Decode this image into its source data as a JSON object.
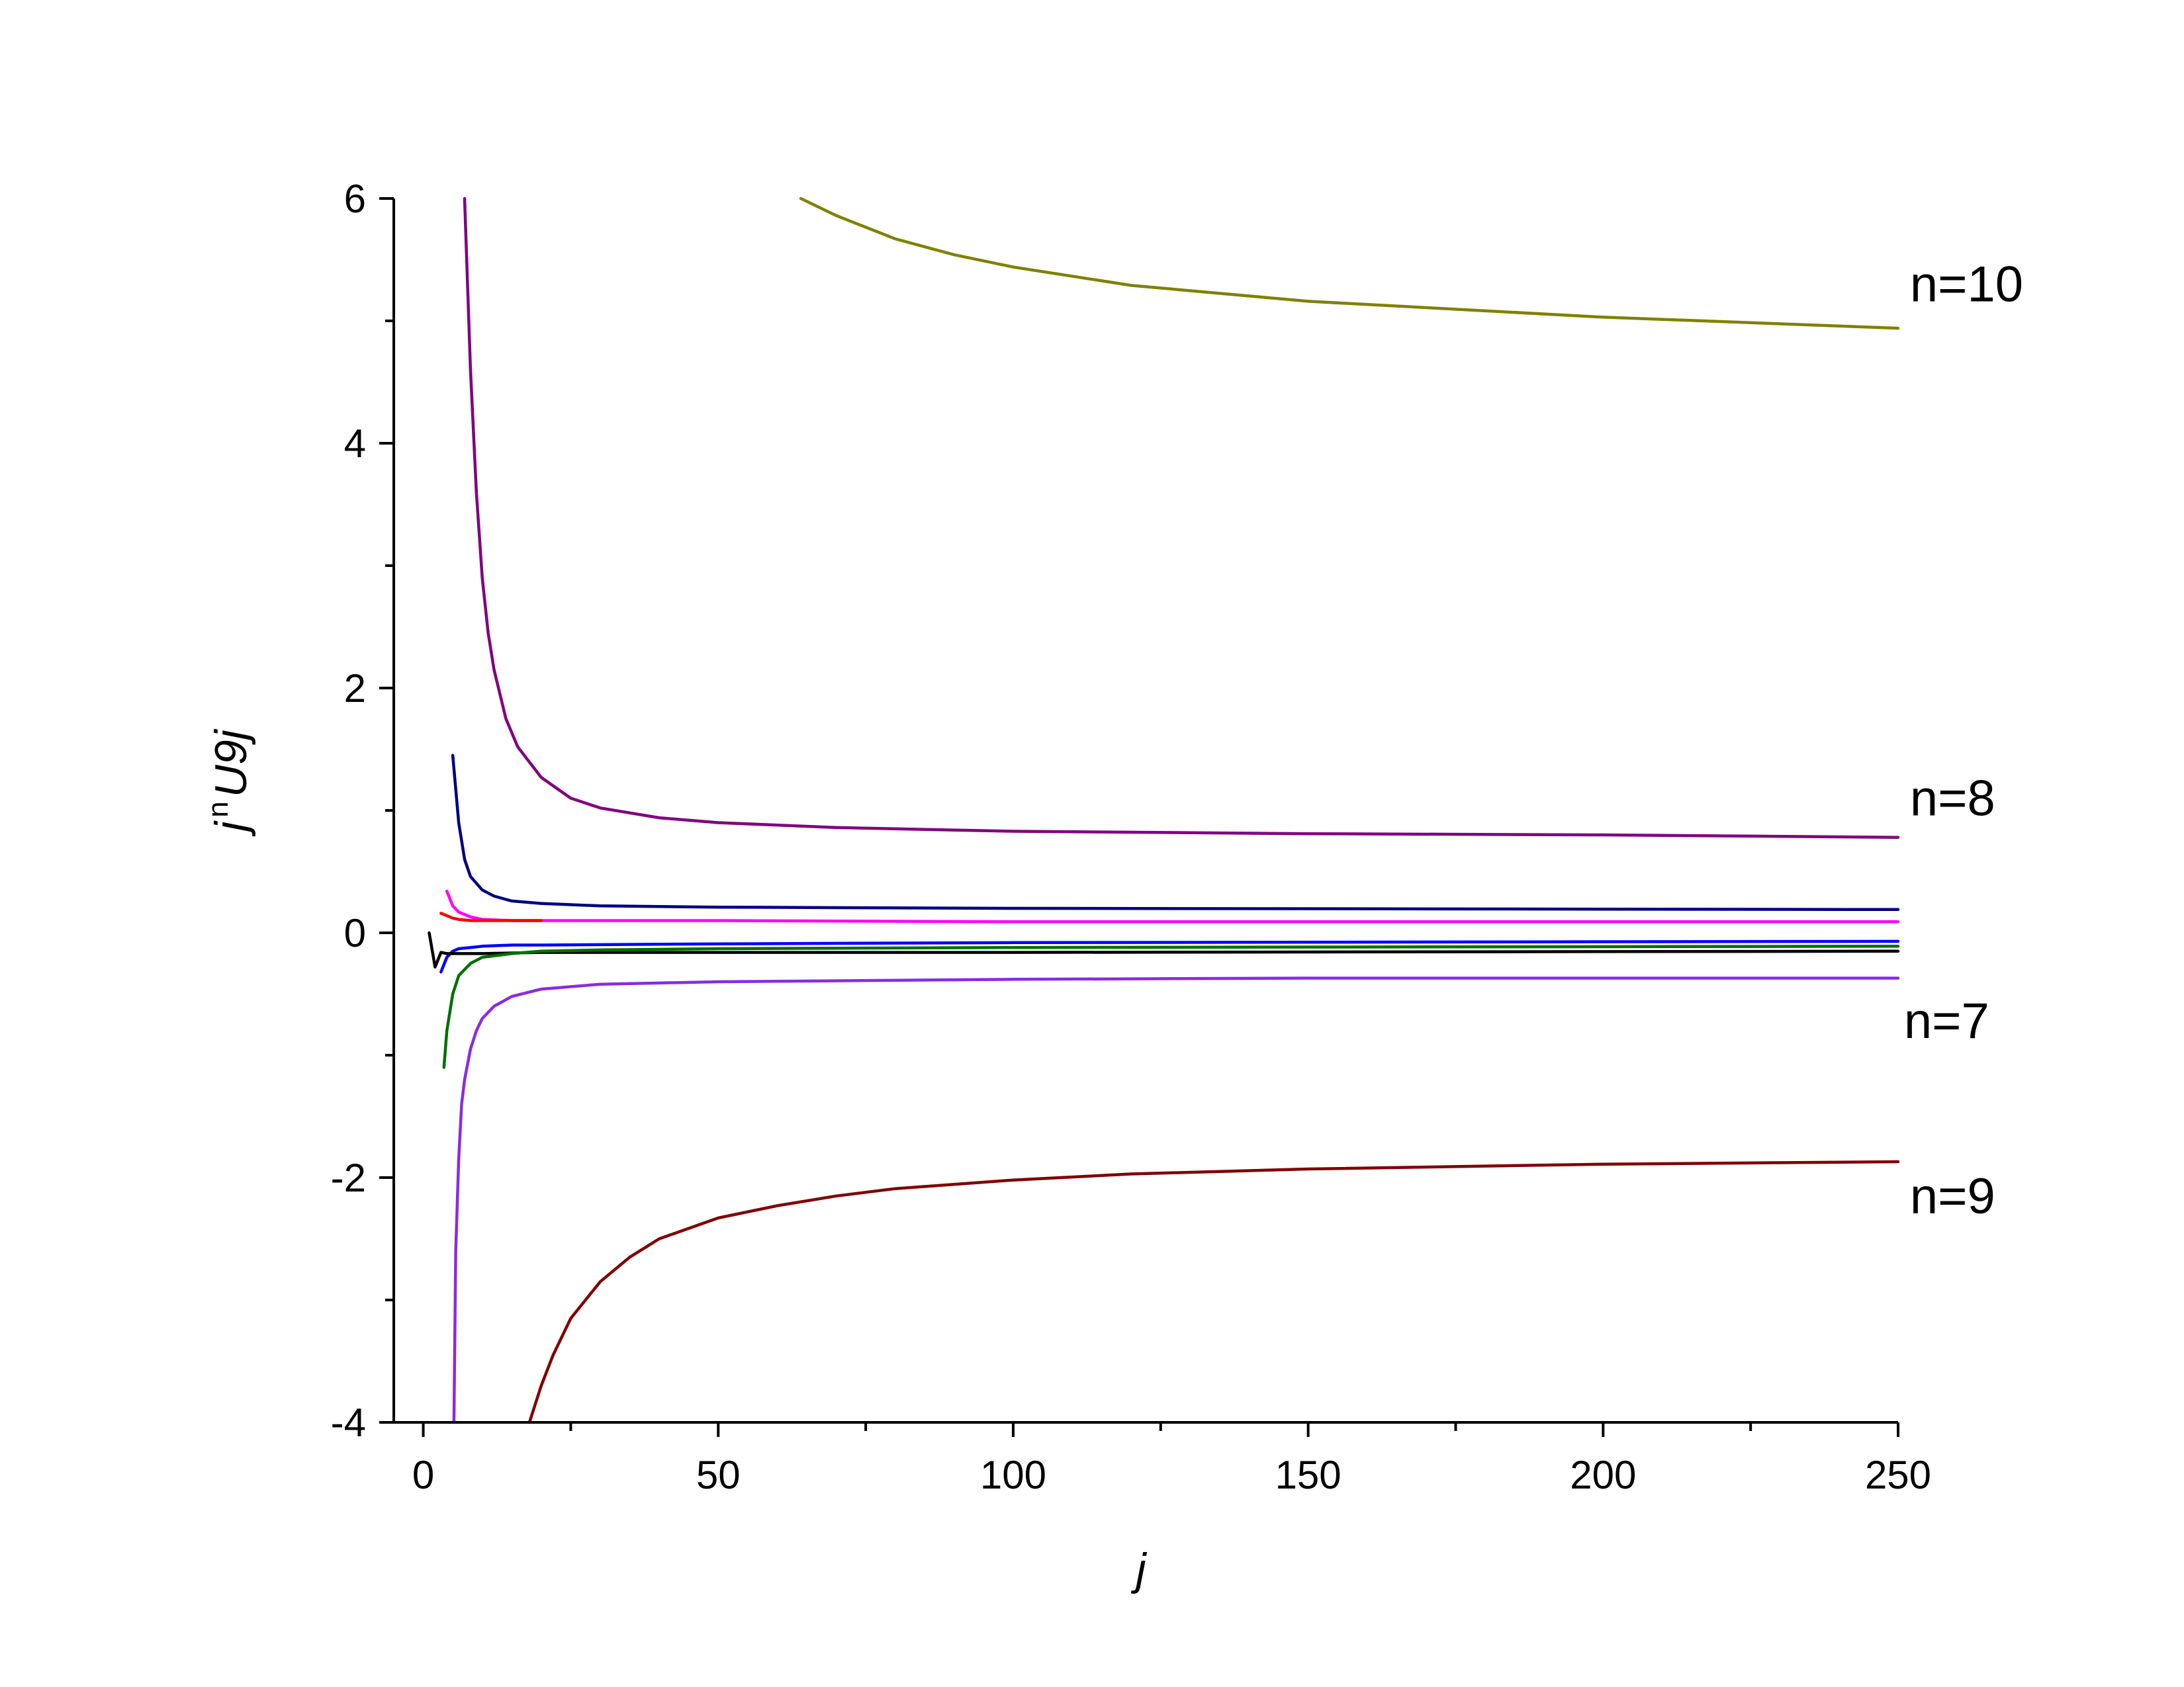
{
  "chart_data": {
    "type": "line",
    "xlabel": "j",
    "ylabel": {
      "base": "j",
      "superscript": "n",
      "rest": "U9j"
    },
    "xlim": [
      -5,
      250
    ],
    "ylim": [
      -4,
      6
    ],
    "x_ticks": [
      0,
      50,
      100,
      150,
      200,
      250
    ],
    "x_tick_labels": [
      "0",
      "50",
      "100",
      "150",
      "200",
      "250"
    ],
    "x_minor_ticks": [
      25,
      75,
      125,
      175,
      225
    ],
    "y_ticks": [
      -4,
      -2,
      0,
      2,
      4,
      6
    ],
    "y_tick_labels": [
      "-4",
      "-2",
      "0",
      "2",
      "4",
      "6"
    ],
    "y_minor_ticks": [
      -3,
      -1,
      1,
      3,
      5
    ],
    "grid": false,
    "legend": "none",
    "series": [
      {
        "name": "n=10",
        "color": "#808000",
        "x": [
          64,
          70,
          80,
          90,
          100,
          120,
          150,
          200,
          250
        ],
        "y": [
          6.0,
          5.86,
          5.67,
          5.54,
          5.44,
          5.29,
          5.16,
          5.03,
          4.94
        ]
      },
      {
        "name": "n=8",
        "color": "#800080",
        "x": [
          7,
          8,
          9,
          10,
          11,
          12,
          14,
          16,
          20,
          25,
          30,
          40,
          50,
          70,
          100,
          150,
          200,
          250
        ],
        "y": [
          6.0,
          4.6,
          3.6,
          2.9,
          2.45,
          2.15,
          1.75,
          1.52,
          1.27,
          1.1,
          1.02,
          0.94,
          0.9,
          0.86,
          0.83,
          0.81,
          0.8,
          0.78
        ]
      },
      {
        "color": "#000080",
        "x": [
          5,
          6,
          7,
          8,
          10,
          12,
          15,
          20,
          30,
          50,
          100,
          250
        ],
        "y": [
          1.45,
          0.9,
          0.6,
          0.46,
          0.35,
          0.3,
          0.26,
          0.24,
          0.22,
          0.21,
          0.2,
          0.19
        ]
      },
      {
        "color": "#ff00ff",
        "x": [
          4,
          5,
          6,
          8,
          10,
          15,
          20,
          50,
          100,
          250
        ],
        "y": [
          0.34,
          0.22,
          0.17,
          0.13,
          0.11,
          0.1,
          0.1,
          0.1,
          0.09,
          0.09
        ]
      },
      {
        "color": "#ff0000",
        "x": [
          3,
          4,
          5,
          6,
          8,
          10,
          20
        ],
        "y": [
          0.16,
          0.14,
          0.12,
          0.11,
          0.1,
          0.1,
          0.1
        ]
      },
      {
        "color": "#0000ff",
        "x": [
          3,
          4,
          5,
          6,
          8,
          10,
          15,
          20,
          50,
          100,
          250
        ],
        "y": [
          -0.32,
          -0.2,
          -0.15,
          -0.13,
          -0.12,
          -0.11,
          -0.1,
          -0.1,
          -0.09,
          -0.08,
          -0.07
        ]
      },
      {
        "color": "#000000",
        "x": [
          1,
          2,
          3,
          4,
          5,
          10,
          20,
          50,
          100,
          250
        ],
        "y": [
          0.0,
          -0.28,
          -0.16,
          -0.17,
          -0.17,
          -0.17,
          -0.16,
          -0.16,
          -0.16,
          -0.15
        ]
      },
      {
        "color": "#007000",
        "x": [
          3.5,
          4,
          5,
          6,
          8,
          10,
          15,
          20,
          30,
          50,
          100,
          250
        ],
        "y": [
          -1.1,
          -0.8,
          -0.5,
          -0.35,
          -0.25,
          -0.2,
          -0.17,
          -0.15,
          -0.14,
          -0.13,
          -0.12,
          -0.11
        ]
      },
      {
        "name": "n=7",
        "color": "#8a2be2",
        "x": [
          5.2,
          5.5,
          6,
          6.5,
          7,
          8,
          9,
          10,
          12,
          15,
          20,
          30,
          50,
          100,
          150,
          200,
          250
        ],
        "y": [
          -4.0,
          -2.6,
          -1.85,
          -1.4,
          -1.2,
          -0.95,
          -0.8,
          -0.7,
          -0.6,
          -0.52,
          -0.46,
          -0.42,
          -0.4,
          -0.38,
          -0.37,
          -0.37,
          -0.37
        ]
      },
      {
        "name": "n=9",
        "color": "#800000",
        "x": [
          18,
          20,
          22,
          25,
          30,
          35,
          40,
          50,
          60,
          70,
          80,
          100,
          120,
          150,
          200,
          250
        ],
        "y": [
          -4.0,
          -3.7,
          -3.45,
          -3.15,
          -2.85,
          -2.65,
          -2.5,
          -2.33,
          -2.23,
          -2.15,
          -2.09,
          -2.02,
          -1.97,
          -1.93,
          -1.89,
          -1.87
        ]
      }
    ],
    "annotations": [
      {
        "text": "n=10",
        "x": 252,
        "y": 5.3
      },
      {
        "text": "n=8",
        "x": 252,
        "y": 1.1
      },
      {
        "text": "n=7",
        "x": 251,
        "y": -0.72
      },
      {
        "text": "n=9",
        "x": 252,
        "y": -2.15
      }
    ]
  }
}
